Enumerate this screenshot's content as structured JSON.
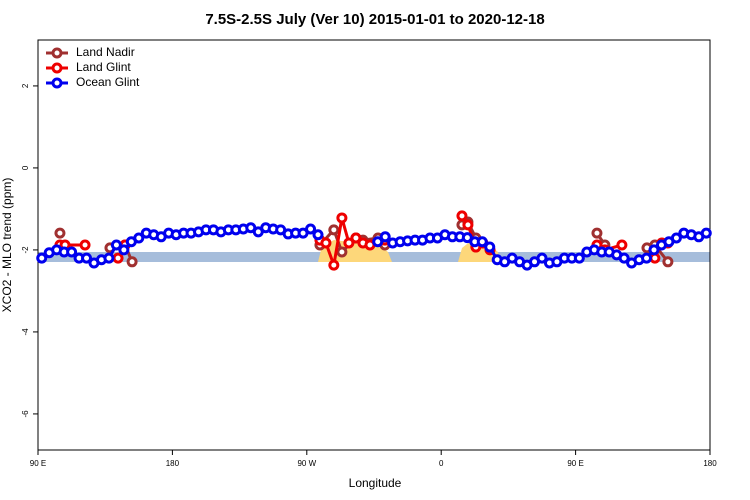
{
  "chart_data": {
    "type": "line",
    "title": "7.5S-2.5S July (Ver 10)   2015-01-01 to 2020-12-18",
    "x_label": "Longitude",
    "y_label": "XCO2 - MLO trend (ppm)",
    "xlim": [
      90,
      540
    ],
    "xticks": [
      {
        "value": 90,
        "label": "90 E"
      },
      {
        "value": 180,
        "label": "180"
      },
      {
        "value": 270,
        "label": "90 W"
      },
      {
        "value": 360,
        "label": "0"
      },
      {
        "value": 450,
        "label": "90 E"
      },
      {
        "value": 540,
        "label": "180"
      }
    ],
    "ylim": [
      -6.88,
      3.12
    ],
    "yticks": [
      2,
      0,
      -2,
      -4,
      -6
    ],
    "legend": "top-left",
    "series": [
      {
        "name": "Land Nadir",
        "color": "#a03030",
        "x": [
          104.7,
          null,
          138.2,
          148.3,
          153,
          null,
          278.8,
          288.1,
          293.5,
          302.9,
          307.6,
          317.7,
          322.3,
          null,
          373.9,
          377.9,
          383.2,
          null,
          464.3,
          469.6,
          null,
          497.8,
          503.1,
          511.8
        ],
        "values": [
          -1.59,
          null,
          -1.95,
          -1.88,
          -2.29,
          null,
          -1.88,
          -1.51,
          -2.05,
          -1.71,
          -1.76,
          -1.71,
          -1.88,
          null,
          -1.39,
          -1.32,
          -1.71,
          null,
          -1.59,
          -1.88,
          null,
          -1.95,
          -1.88,
          -2.29
        ]
      },
      {
        "name": "Land Glint",
        "color": "#ee0000",
        "x": [
          104.7,
          108.1,
          121.5,
          null,
          143.6,
          148.3,
          null,
          278.8,
          282.8,
          288.1,
          293.5,
          298.2,
          302.9,
          307.6,
          312.3,
          322.3,
          null,
          373.9,
          377.9,
          383.2,
          387.9,
          392.7,
          null,
          464.3,
          469.6,
          481,
          null,
          503.1,
          507.8,
          511.8
        ],
        "values": [
          -1.88,
          -1.88,
          -1.88,
          null,
          -2.2,
          -1.88,
          null,
          -1.76,
          -1.83,
          -2.37,
          -1.22,
          -1.83,
          -1.71,
          -1.83,
          -1.88,
          -1.76,
          null,
          -1.17,
          -1.39,
          -1.93,
          -1.83,
          -2.0,
          null,
          -1.88,
          -2.0,
          -1.88,
          null,
          -2.2,
          -1.83,
          -1.83
        ]
      },
      {
        "name": "Ocean Glint",
        "color": "#0000ee",
        "x": [
          92.5,
          97.5,
          102.5,
          107.5,
          112.5,
          117.5,
          122.5,
          127.5,
          132.5,
          137.5,
          142.5,
          147.5,
          152.5,
          157.5,
          162.5,
          167.5,
          172.5,
          177.5,
          182.5,
          187.5,
          192.5,
          197.5,
          202.5,
          207.5,
          212.5,
          217.5,
          222.5,
          227.5,
          232.5,
          237.5,
          242.5,
          247.5,
          252.5,
          257.5,
          262.5,
          267.5,
          272.5,
          277.5,
          282.5,
          287.5,
          292.5,
          297.5,
          302.5,
          307.5,
          312.5,
          317.5,
          322.5,
          327.5,
          332.5,
          337.5,
          342.5,
          347.5,
          352.5,
          357.5,
          362.5,
          367.5,
          372.5,
          377.5,
          382.5,
          387.5,
          392.5,
          397.5,
          402.5,
          407.5,
          412.5,
          417.5,
          422.5,
          427.5,
          432.5,
          437.5,
          442.5,
          447.5,
          452.5,
          457.5,
          462.5,
          467.5,
          472.5,
          477.5,
          482.5,
          487.5,
          492.5,
          497.5,
          502.5,
          507.5,
          512.5,
          517.5,
          522.5,
          527.5,
          532.5,
          537.5
        ],
        "values": [
          -2.2,
          -2.07,
          -2.0,
          -2.05,
          -2.05,
          -2.2,
          -2.2,
          -2.32,
          -2.24,
          -2.2,
          -1.88,
          -2.0,
          -1.8,
          -1.71,
          -1.59,
          -1.63,
          -1.68,
          -1.59,
          -1.63,
          -1.59,
          -1.59,
          -1.56,
          -1.51,
          -1.51,
          -1.56,
          -1.51,
          -1.51,
          -1.49,
          -1.46,
          -1.56,
          -1.46,
          -1.49,
          -1.51,
          -1.61,
          -1.59,
          -1.59,
          -1.49,
          -1.63,
          null,
          null,
          null,
          null,
          null,
          null,
          null,
          -1.8,
          -1.68,
          -1.83,
          -1.8,
          -1.78,
          -1.76,
          -1.76,
          -1.71,
          -1.71,
          -1.63,
          -1.68,
          -1.68,
          -1.7,
          -1.8,
          -1.8,
          -1.93,
          -2.24,
          -2.29,
          -2.2,
          -2.29,
          -2.37,
          -2.29,
          -2.2,
          -2.32,
          -2.29,
          -2.2,
          -2.2,
          -2.2,
          -2.05,
          -2.0,
          -2.05,
          -2.05,
          -2.12,
          -2.2,
          -2.32,
          -2.24,
          -2.2,
          -2.0,
          -1.88,
          -1.8,
          -1.71,
          -1.59,
          -1.63,
          -1.68,
          -1.59
        ]
      }
    ]
  }
}
